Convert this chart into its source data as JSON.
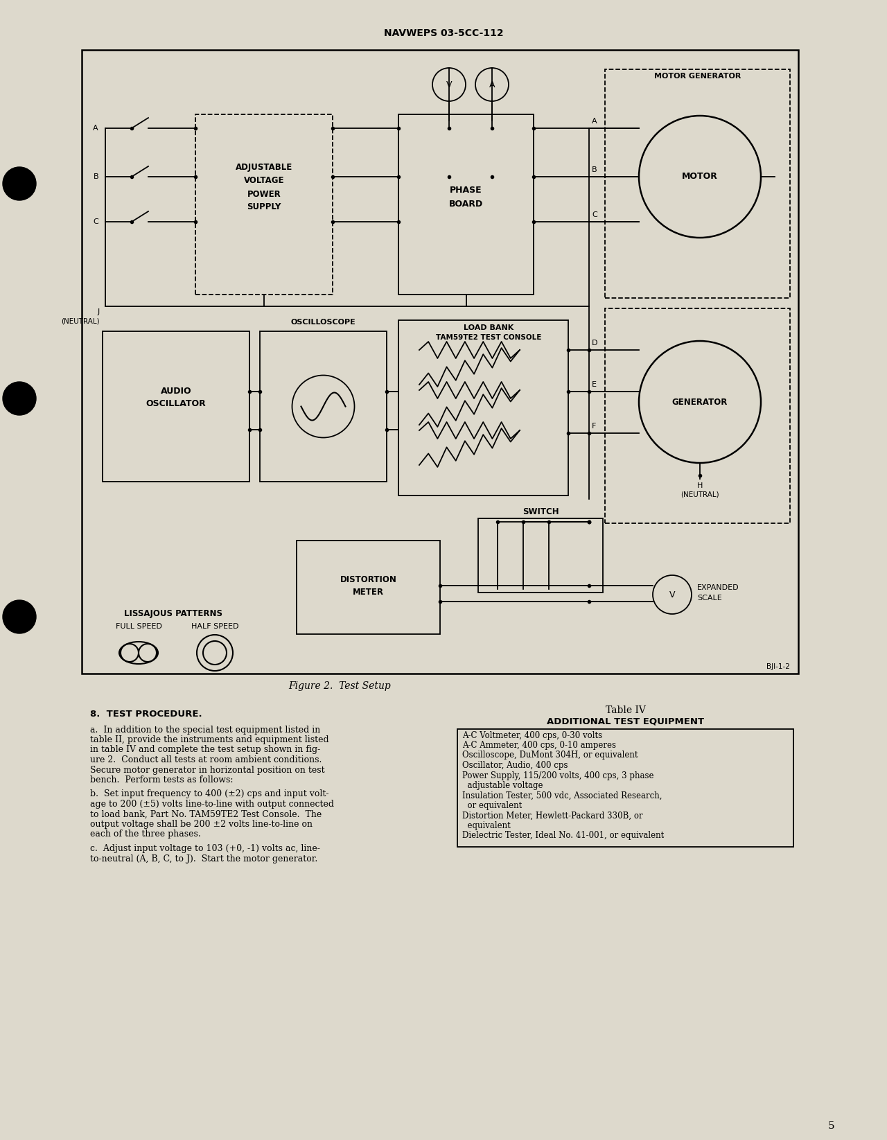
{
  "bg_color": "#ddd9cc",
  "header_text": "NAVWEPS 03-5CC-112",
  "figure_caption": "Figure 2.  Test Setup",
  "page_number": "5",
  "bji_ref": "BJI-1-2",
  "section8_title": "8.  TEST PROCEDURE.",
  "table_title": "Table IV",
  "table_subtitle": "ADDITIONAL TEST EQUIPMENT",
  "table_items": [
    "A-C Voltmeter, 400 cps, 0-30 volts",
    "A-C Ammeter, 400 cps, 0-10 amperes",
    "Oscilloscope, DuMont 304H, or equivalent",
    "Oscillator, Audio, 400 cps",
    "Power Supply, 115/200 volts, 400 cps, 3 phase",
    "  adjustable voltage",
    "Insulation Tester, 500 vdc, Associated Research,",
    "  or equivalent",
    "Distortion Meter, Hewlett-Packard 330B, or",
    "  equivalent",
    "Dielectric Tester, Ideal No. 41-001, or equivalent"
  ],
  "para_a_lines": [
    "a.  In addition to the special test equipment listed in",
    "table II, provide the instruments and equipment listed",
    "in table IV and complete the test setup shown in fig-",
    "ure 2.  Conduct all tests at room ambient conditions.",
    "Secure motor generator in horizontal position on test",
    "bench.  Perform tests as follows:"
  ],
  "para_b_lines": [
    "b.  Set input frequency to 400 (±2) cps and input volt-",
    "age to 200 (±5) volts line-to-line with output connected",
    "to load bank, Part No. TAM59TE2 Test Console.  The",
    "output voltage shall be 200 ±2 volts line-to-line on",
    "each of the three phases."
  ],
  "para_c_lines": [
    "c.  Adjust input voltage to 103 (+0, -1) volts ac, line-",
    "to-neutral (A, B, C, to J).  Start the motor generator."
  ]
}
